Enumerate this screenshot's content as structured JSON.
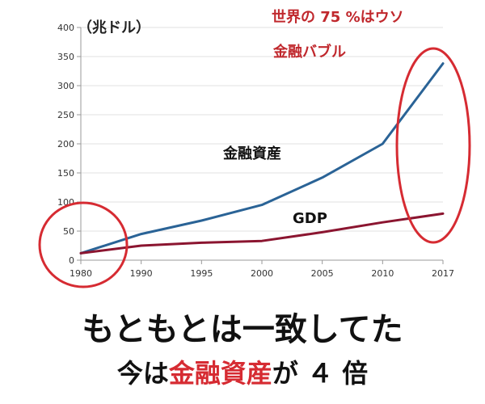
{
  "chart_data": {
    "type": "line",
    "x": [
      1980,
      1990,
      1995,
      2000,
      2005,
      2010,
      2017
    ],
    "x_tick_labels": [
      "1980",
      "1990",
      "1995",
      "2000",
      "2005",
      "2010",
      "2017"
    ],
    "ylim": [
      0,
      400
    ],
    "y_ticks": [
      0,
      50,
      100,
      150,
      200,
      250,
      300,
      350,
      400
    ],
    "y_unit_label": "（兆ドル）",
    "grid": "horizontal",
    "series": [
      {
        "name": "金融資産",
        "color": "#2a6396",
        "values": [
          12,
          45,
          68,
          95,
          142,
          200,
          338
        ]
      },
      {
        "name": "GDP",
        "color": "#8b1530",
        "values": [
          12,
          25,
          30,
          33,
          48,
          65,
          80
        ]
      }
    ],
    "annotations": {
      "note_line1": "世界の 75 %はウソ",
      "note_line2": "金融バブル",
      "note_color": "#c0282d",
      "circle_color": "#d62b32"
    }
  },
  "captions": {
    "line1": "もともとは一致してた",
    "line2_pre": "今は",
    "line2_highlight": "金融資産",
    "line2_post": "が ４ 倍",
    "highlight_color": "#d62b32"
  }
}
